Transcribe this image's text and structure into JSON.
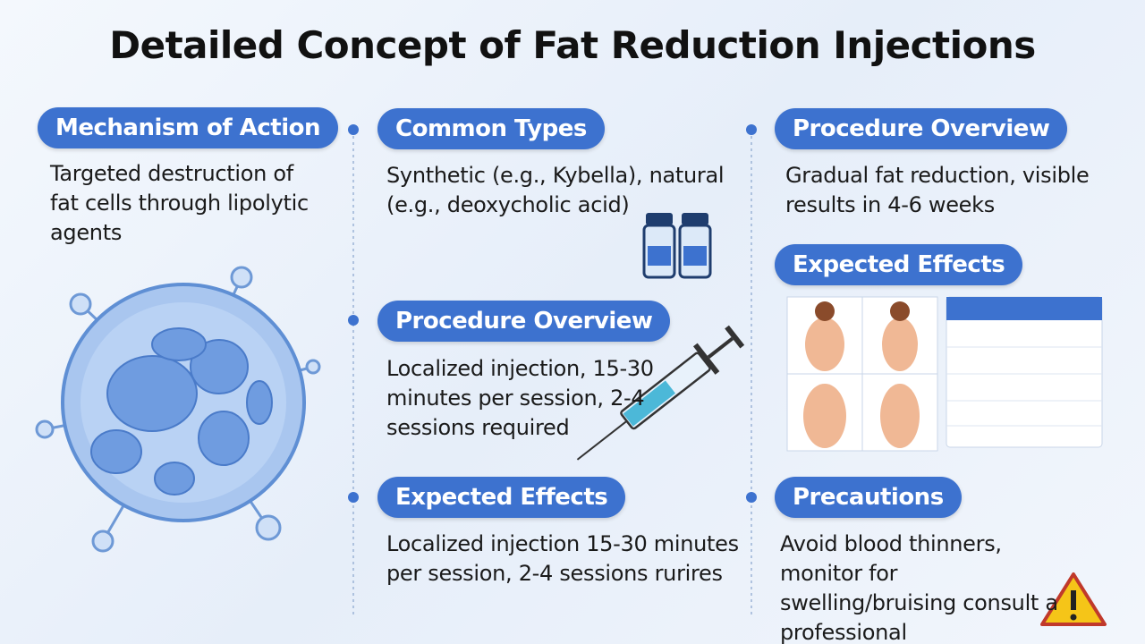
{
  "title": "Detailed Concept of Fat Reduction Injections",
  "sections": [
    {
      "heading": "Mechanism of Action",
      "text": "Targeted destruction of fat cells through lipolytic agents"
    },
    {
      "heading": "Common Types",
      "text": "Synthetic (e.g., Kybella), natural (e.g., deoxycholic acid)"
    },
    {
      "heading": "Procedure Overview",
      "text": "Localized injection, 15-30 minutes per session, 2-4 sessions required"
    },
    {
      "heading": "Expected Effects",
      "text": "Localized injection 15-30 minutes per session, 2-4 sessions rurires"
    },
    {
      "heading": "Procedure Overview",
      "text": "Gradual fat reduction, visible results in 4-6 weeks"
    },
    {
      "heading": "Expected Effects"
    },
    {
      "heading": "Precautions",
      "text": "Avoid blood thinners, monitor for swelling/bruising consult a professional"
    }
  ]
}
